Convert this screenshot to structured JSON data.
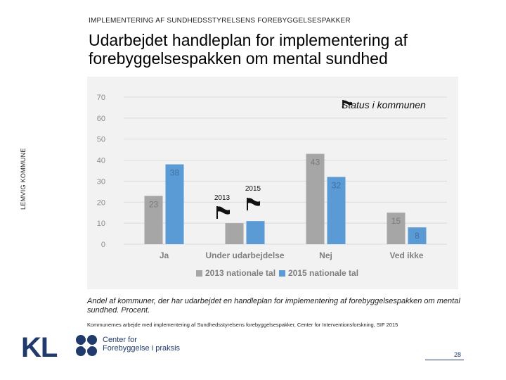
{
  "header": "IMPLEMENTERING AF SUNDHEDSSTYRELSENS FOREBYGGELSESPAKKER",
  "title": "Udarbejdet handleplan for implementering af forebyggelsespakken om mental sundhed",
  "side_label": "LEMVIG KOMMUNE",
  "status_label": "Status i kommunen",
  "caption": "Andel af kommuner, der har udarbejdet en handleplan for implementering af forebyggelsespakken om mental sundhed. Procent.",
  "source": "Kommunernes arbejde med implementering af Sundhedsstyrelsens forebyggelsespakker, Center for Interventionsforskning, SIF 2015",
  "logo_kl": "KL",
  "logo_center_line1": "Center for",
  "logo_center_line2": "Forebyggelse i praksis",
  "page_number": "28",
  "colors": {
    "series2013": "#a6a6a6",
    "series2015": "#5b9bd5",
    "logo": "#1f3a6b"
  },
  "chart_data": {
    "type": "bar",
    "categories": [
      "Ja",
      "Under udarbejdelse",
      "Nej",
      "Ved ikke"
    ],
    "series": [
      {
        "name": "2013 nationale tal",
        "values": [
          23,
          10,
          43,
          15
        ]
      },
      {
        "name": "2015 nationale tal",
        "values": [
          38,
          11,
          32,
          8
        ]
      }
    ],
    "data_labels": [
      [
        "23",
        "",
        "43",
        "15"
      ],
      [
        "38",
        "",
        "32",
        "8"
      ]
    ],
    "yticks": [
      0,
      10,
      20,
      30,
      40,
      50,
      60,
      70
    ],
    "ylim": [
      0,
      70
    ],
    "title": "",
    "xlabel": "",
    "ylabel": "",
    "legend_position": "bottom",
    "annotations": {
      "year2013": "2013",
      "year2015": "2015"
    }
  }
}
